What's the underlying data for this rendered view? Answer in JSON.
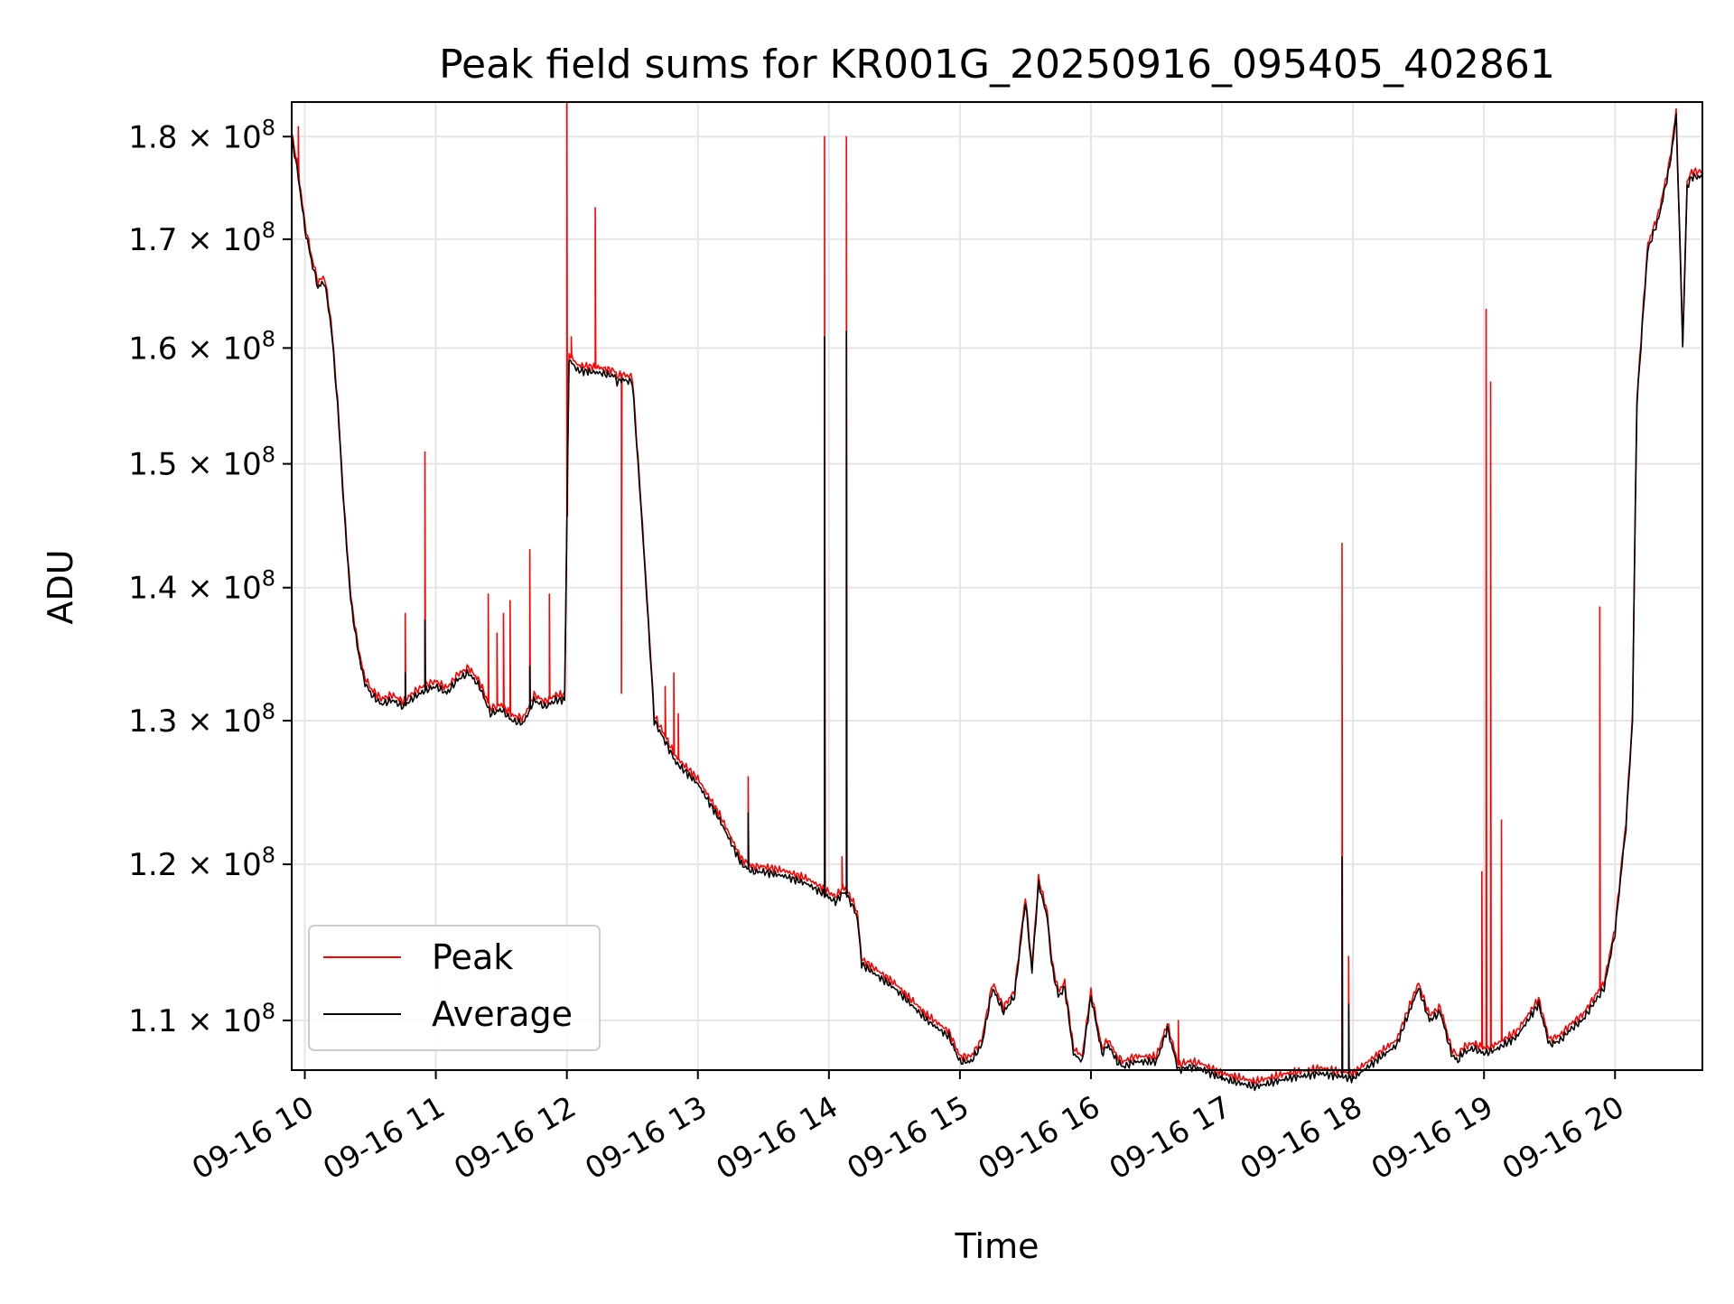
{
  "chart_data": {
    "type": "line",
    "title": "Peak field sums for KR001G_20250916_095405_402861",
    "xlabel": "Time",
    "ylabel": "ADU",
    "y_scale": "log",
    "grid": true,
    "legend_position": "lower-left",
    "xlim": [
      "2025-09-16 09:54",
      "2025-09-16 20:40"
    ],
    "ylim": [
      107000000,
      183500000
    ],
    "x_ticks": [
      {
        "time": "2025-09-16 10:00",
        "label": "09-16 10"
      },
      {
        "time": "2025-09-16 11:00",
        "label": "09-16 11"
      },
      {
        "time": "2025-09-16 12:00",
        "label": "09-16 12"
      },
      {
        "time": "2025-09-16 13:00",
        "label": "09-16 13"
      },
      {
        "time": "2025-09-16 14:00",
        "label": "09-16 14"
      },
      {
        "time": "2025-09-16 15:00",
        "label": "09-16 15"
      },
      {
        "time": "2025-09-16 16:00",
        "label": "09-16 16"
      },
      {
        "time": "2025-09-16 17:00",
        "label": "09-16 17"
      },
      {
        "time": "2025-09-16 18:00",
        "label": "09-16 18"
      },
      {
        "time": "2025-09-16 19:00",
        "label": "09-16 19"
      },
      {
        "time": "2025-09-16 20:00",
        "label": "09-16 20"
      }
    ],
    "y_ticks": [
      {
        "value": 110000000,
        "mantissa": "1.1",
        "base": "10",
        "exponent": "8"
      },
      {
        "value": 120000000,
        "mantissa": "1.2",
        "base": "10",
        "exponent": "8"
      },
      {
        "value": 130000000,
        "mantissa": "1.3",
        "base": "10",
        "exponent": "8"
      },
      {
        "value": 140000000,
        "mantissa": "1.4",
        "base": "10",
        "exponent": "8"
      },
      {
        "value": 150000000,
        "mantissa": "1.5",
        "base": "10",
        "exponent": "8"
      },
      {
        "value": 160000000,
        "mantissa": "1.6",
        "base": "10",
        "exponent": "8"
      },
      {
        "value": 170000000,
        "mantissa": "1.7",
        "base": "10",
        "exponent": "8"
      },
      {
        "value": 180000000,
        "mantissa": "1.8",
        "base": "10",
        "exponent": "8"
      }
    ],
    "baseline": {
      "x": [
        "2025-09-16 09:54",
        "2025-09-16 09:57",
        "2025-09-16 10:00",
        "2025-09-16 10:03",
        "2025-09-16 10:06",
        "2025-09-16 10:09",
        "2025-09-16 10:12",
        "2025-09-16 10:15",
        "2025-09-16 10:18",
        "2025-09-16 10:21",
        "2025-09-16 10:24",
        "2025-09-16 10:27",
        "2025-09-16 10:30",
        "2025-09-16 10:35",
        "2025-09-16 10:40",
        "2025-09-16 10:45",
        "2025-09-16 10:50",
        "2025-09-16 10:55",
        "2025-09-16 11:00",
        "2025-09-16 11:05",
        "2025-09-16 11:10",
        "2025-09-16 11:15",
        "2025-09-16 11:20",
        "2025-09-16 11:25",
        "2025-09-16 11:30",
        "2025-09-16 11:35",
        "2025-09-16 11:40",
        "2025-09-16 11:45",
        "2025-09-16 11:50",
        "2025-09-16 11:55",
        "2025-09-16 11:59",
        "2025-09-16 12:01",
        "2025-09-16 12:05",
        "2025-09-16 12:15",
        "2025-09-16 12:22",
        "2025-09-16 12:23",
        "2025-09-16 12:25",
        "2025-09-16 12:30",
        "2025-09-16 12:40",
        "2025-09-16 12:45",
        "2025-09-16 12:50",
        "2025-09-16 13:00",
        "2025-09-16 13:10",
        "2025-09-16 13:20",
        "2025-09-16 13:25",
        "2025-09-16 13:30",
        "2025-09-16 13:40",
        "2025-09-16 13:50",
        "2025-09-16 13:58",
        "2025-09-16 14:03",
        "2025-09-16 14:07",
        "2025-09-16 14:10",
        "2025-09-16 14:13",
        "2025-09-16 14:15",
        "2025-09-16 14:30",
        "2025-09-16 14:45",
        "2025-09-16 14:55",
        "2025-09-16 15:00",
        "2025-09-16 15:05",
        "2025-09-16 15:10",
        "2025-09-16 15:15",
        "2025-09-16 15:20",
        "2025-09-16 15:25",
        "2025-09-16 15:30",
        "2025-09-16 15:33",
        "2025-09-16 15:36",
        "2025-09-16 15:40",
        "2025-09-16 15:42",
        "2025-09-16 15:45",
        "2025-09-16 15:48",
        "2025-09-16 15:52",
        "2025-09-16 15:56",
        "2025-09-16 16:00",
        "2025-09-16 16:05",
        "2025-09-16 16:08",
        "2025-09-16 16:12",
        "2025-09-16 16:15",
        "2025-09-16 16:20",
        "2025-09-16 16:30",
        "2025-09-16 16:35",
        "2025-09-16 16:40",
        "2025-09-16 16:45",
        "2025-09-16 16:50",
        "2025-09-16 17:00",
        "2025-09-16 17:15",
        "2025-09-16 17:30",
        "2025-09-16 17:45",
        "2025-09-16 18:00",
        "2025-09-16 18:10",
        "2025-09-16 18:20",
        "2025-09-16 18:30",
        "2025-09-16 18:35",
        "2025-09-16 18:40",
        "2025-09-16 18:45",
        "2025-09-16 18:48",
        "2025-09-16 18:50",
        "2025-09-16 18:55",
        "2025-09-16 19:00",
        "2025-09-16 19:05",
        "2025-09-16 19:15",
        "2025-09-16 19:25",
        "2025-09-16 19:30",
        "2025-09-16 19:35",
        "2025-09-16 19:40",
        "2025-09-16 19:45",
        "2025-09-16 19:50",
        "2025-09-16 19:55",
        "2025-09-16 20:00",
        "2025-09-16 20:05",
        "2025-09-16 20:08",
        "2025-09-16 20:10",
        "2025-09-16 20:15",
        "2025-09-16 20:20",
        "2025-09-16 20:25",
        "2025-09-16 20:28",
        "2025-09-16 20:31",
        "2025-09-16 20:33",
        "2025-09-16 20:35",
        "2025-09-16 20:40"
      ],
      "y": [
        180000000,
        176000000,
        171000000,
        168000000,
        165500000,
        166000000,
        162000000,
        155000000,
        146000000,
        139000000,
        135500000,
        133000000,
        132000000,
        131200000,
        131500000,
        131000000,
        131700000,
        132200000,
        132500000,
        132000000,
        133000000,
        133500000,
        132500000,
        130500000,
        130800000,
        130000000,
        129800000,
        131500000,
        131000000,
        131500000,
        131500000,
        159000000,
        158000000,
        157800000,
        157500000,
        157000000,
        157200000,
        157000000,
        130000000,
        128500000,
        127000000,
        125500000,
        123000000,
        120000000,
        119500000,
        119500000,
        119200000,
        118700000,
        118000000,
        117500000,
        118200000,
        117500000,
        116500000,
        113500000,
        112000000,
        110000000,
        109000000,
        107500000,
        107500000,
        108500000,
        112000000,
        110500000,
        111500000,
        117500000,
        113000000,
        118700000,
        116500000,
        113500000,
        111500000,
        112000000,
        108000000,
        107500000,
        111500000,
        108000000,
        108500000,
        107500000,
        107200000,
        107500000,
        107500000,
        109500000,
        107000000,
        107200000,
        107100000,
        106500000,
        106000000,
        106500000,
        106800000,
        106500000,
        107500000,
        108500000,
        112000000,
        110000000,
        110500000,
        108000000,
        107500000,
        108000000,
        108300000,
        108000000,
        108200000,
        109000000,
        111000000,
        108500000,
        108800000,
        109500000,
        110000000,
        111000000,
        112000000,
        115500000,
        122500000,
        130000000,
        155000000,
        169000000,
        172000000,
        177000000,
        182000000,
        160000000,
        175000000,
        176000000,
        176000000
      ]
    },
    "series": [
      {
        "name": "Peak",
        "color": "#ff0000",
        "spikes": [
          {
            "t": "2025-09-16 09:57",
            "y": 181000000
          },
          {
            "t": "2025-09-16 10:46",
            "y": 138000000
          },
          {
            "t": "2025-09-16 10:55",
            "y": 151000000
          },
          {
            "t": "2025-09-16 11:24",
            "y": 139500000
          },
          {
            "t": "2025-09-16 11:28",
            "y": 136500000
          },
          {
            "t": "2025-09-16 11:31",
            "y": 138000000
          },
          {
            "t": "2025-09-16 11:34",
            "y": 139000000
          },
          {
            "t": "2025-09-16 11:43",
            "y": 143000000
          },
          {
            "t": "2025-09-16 11:52",
            "y": 139500000
          },
          {
            "t": "2025-09-16 12:00",
            "y": 183500000
          },
          {
            "t": "2025-09-16 12:02",
            "y": 161000000
          },
          {
            "t": "2025-09-16 12:13",
            "y": 173000000
          },
          {
            "t": "2025-09-16 12:25",
            "y": 132000000
          },
          {
            "t": "2025-09-16 12:45",
            "y": 132500000
          },
          {
            "t": "2025-09-16 12:49",
            "y": 133500000
          },
          {
            "t": "2025-09-16 12:51",
            "y": 130500000
          },
          {
            "t": "2025-09-16 13:23",
            "y": 126000000
          },
          {
            "t": "2025-09-16 13:58",
            "y": 180000000
          },
          {
            "t": "2025-09-16 14:06",
            "y": 120500000
          },
          {
            "t": "2025-09-16 14:08",
            "y": 180000000
          },
          {
            "t": "2025-09-16 16:40",
            "y": 110000000
          },
          {
            "t": "2025-09-16 17:55",
            "y": 143500000
          },
          {
            "t": "2025-09-16 17:58",
            "y": 114000000
          },
          {
            "t": "2025-09-16 18:59",
            "y": 119500000
          },
          {
            "t": "2025-09-16 19:01",
            "y": 163500000
          },
          {
            "t": "2025-09-16 19:03",
            "y": 157000000
          },
          {
            "t": "2025-09-16 19:08",
            "y": 123000000
          },
          {
            "t": "2025-09-16 19:53",
            "y": 138500000
          }
        ]
      },
      {
        "name": "Average",
        "color": "#000000",
        "spikes": [
          {
            "t": "2025-09-16 10:46",
            "y": 133500000
          },
          {
            "t": "2025-09-16 10:55",
            "y": 137500000
          },
          {
            "t": "2025-09-16 11:43",
            "y": 134000000
          },
          {
            "t": "2025-09-16 13:23",
            "y": 123500000
          },
          {
            "t": "2025-09-16 13:58",
            "y": 161000000
          },
          {
            "t": "2025-09-16 14:08",
            "y": 161500000
          },
          {
            "t": "2025-09-16 17:55",
            "y": 120500000
          },
          {
            "t": "2025-09-16 17:58",
            "y": 111000000
          }
        ]
      }
    ]
  }
}
